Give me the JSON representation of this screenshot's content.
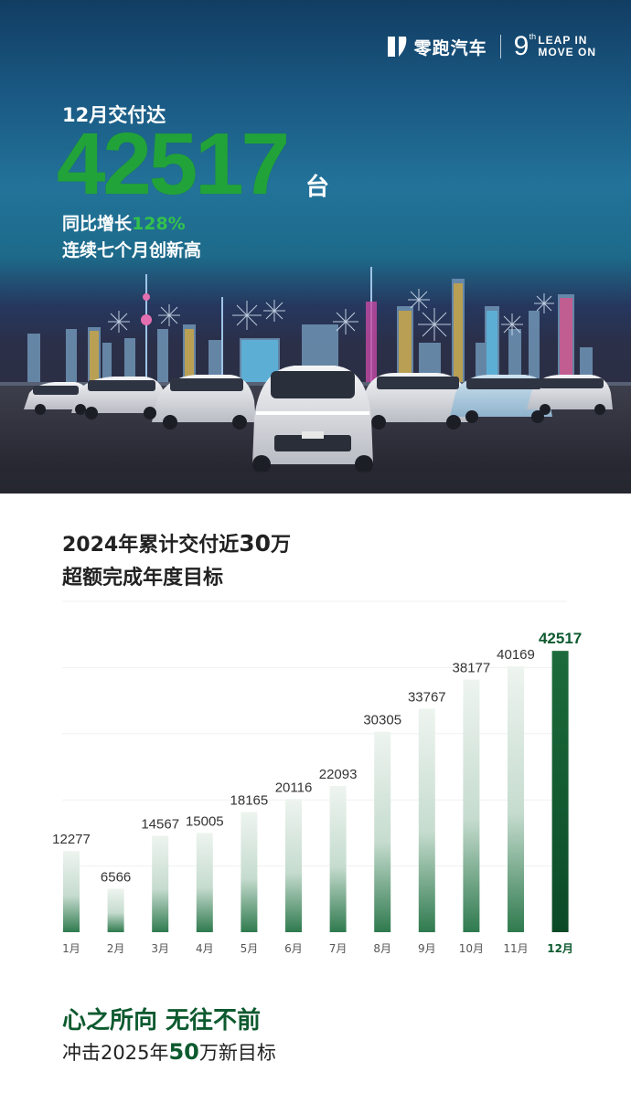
{
  "brand": {
    "name": "零跑汽车",
    "anniversary_number": "9",
    "anniversary_suffix": "th",
    "slogan_line1": "LEAP IN",
    "slogan_line2": "MOVE ON",
    "logo_icon": "leapmotor-logo-icon"
  },
  "hero": {
    "subtitle": "12月交付达",
    "big_number": "42517",
    "unit": "台",
    "growth_prefix": "同比增长",
    "growth_value": "128%",
    "streak": "连续七个月创新高"
  },
  "section": {
    "title_part1": "2024年累计交付近",
    "title_highlight": "30",
    "title_part2": "万",
    "subtitle": "超额完成年度目标"
  },
  "footer": {
    "slogan": "心之所向 无往不前",
    "target_part1": "冲击2025年",
    "target_highlight": "50",
    "target_part2": "万新目标"
  },
  "colors": {
    "accent_green": "#22a33a",
    "dark_green": "#0d5a2f",
    "bar_light": "#e8f1ec"
  },
  "chart_data": {
    "type": "bar",
    "categories": [
      "1月",
      "2月",
      "3月",
      "4月",
      "5月",
      "6月",
      "7月",
      "8月",
      "9月",
      "10月",
      "11月",
      "12月"
    ],
    "values": [
      12277,
      6566,
      14567,
      15005,
      18165,
      20116,
      22093,
      30305,
      33767,
      38177,
      40169,
      42517
    ],
    "highlight_index": 11,
    "ylim": [
      0,
      50000
    ],
    "grid": true,
    "legend": "none"
  }
}
